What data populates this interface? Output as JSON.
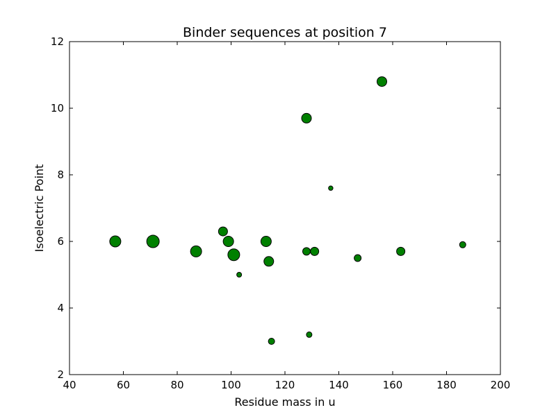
{
  "chart_data": {
    "type": "scatter",
    "title": "Binder sequences at position 7",
    "xlabel": "Residue mass in u",
    "ylabel": "Isoelectric Point",
    "xlim": [
      40,
      200
    ],
    "ylim": [
      2,
      12
    ],
    "xticks": [
      40,
      60,
      80,
      100,
      120,
      140,
      160,
      180,
      200
    ],
    "yticks": [
      2,
      4,
      6,
      8,
      10,
      12
    ],
    "grid": false,
    "legend": "none",
    "marker_color": "#008000",
    "marker_edge_color": "#000000",
    "series": [
      {
        "points": [
          {
            "x": 57,
            "y": 6.0,
            "size": 8
          },
          {
            "x": 71,
            "y": 6.0,
            "size": 9
          },
          {
            "x": 87,
            "y": 5.7,
            "size": 8
          },
          {
            "x": 97,
            "y": 6.3,
            "size": 6.5
          },
          {
            "x": 99,
            "y": 6.0,
            "size": 7.5
          },
          {
            "x": 101,
            "y": 5.6,
            "size": 8.5
          },
          {
            "x": 103,
            "y": 5.0,
            "size": 3.5
          },
          {
            "x": 113,
            "y": 6.0,
            "size": 7.5
          },
          {
            "x": 114,
            "y": 5.4,
            "size": 7
          },
          {
            "x": 115,
            "y": 3.0,
            "size": 4.5
          },
          {
            "x": 128,
            "y": 9.7,
            "size": 7
          },
          {
            "x": 128,
            "y": 5.7,
            "size": 5.5
          },
          {
            "x": 129,
            "y": 3.2,
            "size": 4
          },
          {
            "x": 131,
            "y": 5.7,
            "size": 6
          },
          {
            "x": 137,
            "y": 7.6,
            "size": 3.2
          },
          {
            "x": 147,
            "y": 5.5,
            "size": 5
          },
          {
            "x": 156,
            "y": 10.8,
            "size": 7
          },
          {
            "x": 163,
            "y": 5.7,
            "size": 6
          },
          {
            "x": 186,
            "y": 5.9,
            "size": 4.5
          }
        ]
      }
    ]
  }
}
